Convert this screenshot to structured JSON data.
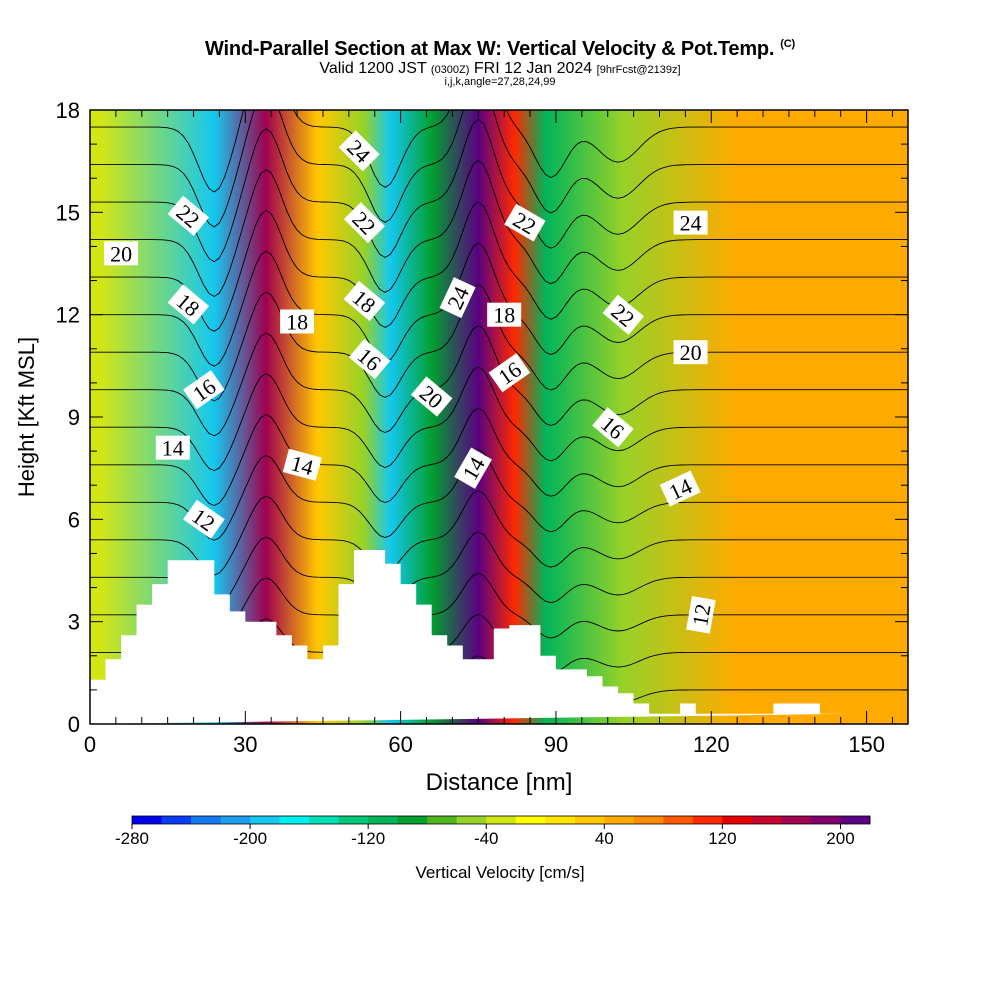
{
  "header": {
    "title": "Wind-Parallel Section at Max W: Vertical Velocity & Pot.Temp.",
    "copyright": "(C)",
    "valid_main": "Valid 1200 JST",
    "valid_z": "(0300Z)",
    "valid_date": "FRI 12 Jan 2024",
    "forecast": "[9hrFcst@2139z]",
    "params": "i,j,k,angle=27,28,24,99"
  },
  "colors": {
    "terrain": "#ffffff",
    "contour": "#000000",
    "background": "#ffffff"
  },
  "chart_data": {
    "type": "heatmap",
    "xlabel": "Distance [nm]",
    "ylabel": "Height [Kft MSL]",
    "xlim": [
      0,
      158
    ],
    "ylim": [
      0,
      18
    ],
    "xticks": [
      0,
      30,
      60,
      90,
      120,
      150
    ],
    "yticks": [
      0,
      3,
      6,
      9,
      12,
      15,
      18
    ],
    "colorbar": {
      "label": "Vertical Velocity [cm/s]",
      "ticks": [
        "-280",
        "-200",
        "-120",
        "-40",
        "40",
        "120",
        "200"
      ],
      "levels": [
        -280,
        -260,
        -240,
        -220,
        -200,
        -180,
        -160,
        -140,
        -120,
        -100,
        -80,
        -60,
        -40,
        -20,
        0,
        20,
        40,
        60,
        80,
        100,
        120,
        140,
        160,
        180,
        200,
        220
      ],
      "colors": [
        "#0000f0",
        "#0a3cf5",
        "#1478f0",
        "#1e9cf0",
        "#14c8f0",
        "#00f0f0",
        "#00e0b4",
        "#00c878",
        "#00b45a",
        "#00a030",
        "#50b41e",
        "#96d228",
        "#d2e614",
        "#ffff00",
        "#ffe600",
        "#ffc800",
        "#ffaa00",
        "#ff8c00",
        "#ff5a00",
        "#ff2800",
        "#e60000",
        "#c8002d",
        "#a00050",
        "#82006e",
        "#5a0082"
      ]
    },
    "velocity_bands": [
      {
        "center_nm": 2,
        "value_cm_s": -40
      },
      {
        "center_nm": 24,
        "value_cm_s": -200
      },
      {
        "center_nm": 34,
        "value_cm_s": 160
      },
      {
        "center_nm": 44,
        "value_cm_s": 20
      },
      {
        "center_nm": 53,
        "value_cm_s": -60
      },
      {
        "center_nm": 58,
        "value_cm_s": -200
      },
      {
        "center_nm": 66,
        "value_cm_s": -100
      },
      {
        "center_nm": 75,
        "value_cm_s": 200
      },
      {
        "center_nm": 82,
        "value_cm_s": 100
      },
      {
        "center_nm": 88,
        "value_cm_s": -120
      },
      {
        "center_nm": 103,
        "value_cm_s": -60
      },
      {
        "center_nm": 125,
        "value_cm_s": 40
      }
    ],
    "terrain_kft": {
      "x": [
        0,
        3,
        3,
        6,
        6,
        9,
        9,
        12,
        12,
        15,
        15,
        18,
        18,
        24,
        24,
        27,
        27,
        30,
        30,
        36,
        36,
        39,
        39,
        42,
        42,
        45,
        45,
        48,
        48,
        51,
        51,
        57,
        57,
        60,
        60,
        63,
        63,
        66,
        66,
        69,
        69,
        72,
        72,
        78,
        78,
        81,
        81,
        87,
        87,
        90,
        90,
        93,
        93,
        96,
        96,
        99,
        99,
        102,
        102,
        105,
        105,
        108,
        108,
        111,
        111,
        114,
        114,
        117,
        117,
        126,
        126,
        129,
        129,
        132,
        132,
        135,
        135,
        138,
        138,
        141,
        141,
        144,
        144,
        147,
        147,
        158
      ],
      "y": [
        1.3,
        1.3,
        1.9,
        1.9,
        2.6,
        2.6,
        3.5,
        3.5,
        4.1,
        4.1,
        4.8,
        4.8,
        4.8,
        4.8,
        3.8,
        3.8,
        3.3,
        3.3,
        3.0,
        3.0,
        2.6,
        2.6,
        2.3,
        2.3,
        1.9,
        1.9,
        2.3,
        2.3,
        4.1,
        4.1,
        5.1,
        5.1,
        4.7,
        4.7,
        4.1,
        4.1,
        3.5,
        3.5,
        2.6,
        2.6,
        2.3,
        2.3,
        1.9,
        1.9,
        2.8,
        2.8,
        2.9,
        2.9,
        2.0,
        2.0,
        1.6,
        1.6,
        1.6,
        1.6,
        1.4,
        1.4,
        1.1,
        1.1,
        0.9,
        0.9,
        0.6,
        0.6,
        0.3,
        0.3,
        0.3,
        0.3,
        0.6,
        0.6,
        0.3,
        0.3,
        0.3,
        0.3,
        0.3,
        0.3,
        0.6,
        0.6,
        0.6,
        0.6,
        0.6,
        0.6,
        0.3,
        0.3,
        0.3,
        0.3,
        0.3
      ]
    },
    "isentrope_labels": [
      {
        "text": "20",
        "x": 6,
        "y": 13.8,
        "angle": 0
      },
      {
        "text": "22",
        "x": 19,
        "y": 14.9,
        "angle": 40
      },
      {
        "text": "18",
        "x": 19,
        "y": 12.3,
        "angle": 40
      },
      {
        "text": "16",
        "x": 22,
        "y": 9.8,
        "angle": -35
      },
      {
        "text": "14",
        "x": 16,
        "y": 8.1,
        "angle": 0
      },
      {
        "text": "12",
        "x": 22,
        "y": 6.0,
        "angle": 35
      },
      {
        "text": "18",
        "x": 40,
        "y": 11.8,
        "angle": 0
      },
      {
        "text": "14",
        "x": 41,
        "y": 7.6,
        "angle": 15
      },
      {
        "text": "24",
        "x": 52,
        "y": 16.8,
        "angle": 45
      },
      {
        "text": "22",
        "x": 53,
        "y": 14.7,
        "angle": 45
      },
      {
        "text": "18",
        "x": 53,
        "y": 12.4,
        "angle": 40
      },
      {
        "text": "16",
        "x": 54,
        "y": 10.7,
        "angle": 40
      },
      {
        "text": "20",
        "x": 66,
        "y": 9.6,
        "angle": 40
      },
      {
        "text": "24",
        "x": 71,
        "y": 12.5,
        "angle": -65
      },
      {
        "text": "14",
        "x": 74,
        "y": 7.5,
        "angle": -60
      },
      {
        "text": "18",
        "x": 80,
        "y": 12.0,
        "angle": 0
      },
      {
        "text": "16",
        "x": 81,
        "y": 10.3,
        "angle": -35
      },
      {
        "text": "22",
        "x": 84,
        "y": 14.7,
        "angle": 30
      },
      {
        "text": "22",
        "x": 103,
        "y": 12.0,
        "angle": 40
      },
      {
        "text": "16",
        "x": 101,
        "y": 8.7,
        "angle": 40
      },
      {
        "text": "24",
        "x": 116,
        "y": 14.7,
        "angle": 0
      },
      {
        "text": "20",
        "x": 116,
        "y": 10.9,
        "angle": 0
      },
      {
        "text": "14",
        "x": 114,
        "y": 6.9,
        "angle": -25
      },
      {
        "text": "12",
        "x": 118,
        "y": 3.2,
        "angle": -80
      }
    ]
  }
}
